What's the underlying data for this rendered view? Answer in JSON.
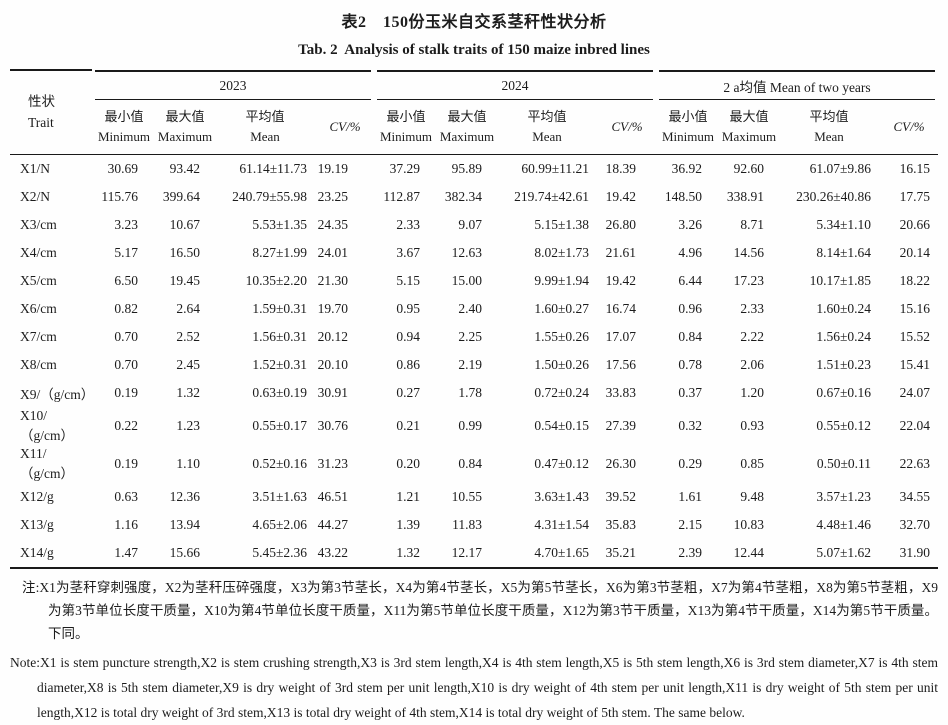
{
  "title": {
    "zh": "表2　150份玉米自交系茎秆性状分析",
    "en": "Tab. 2  Analysis of stalk traits of 150 maize inbred lines"
  },
  "table": {
    "trait_header": {
      "zh": "性状",
      "en": "Trait"
    },
    "year_groups": [
      "2023",
      "2024",
      "2 a均值 Mean of two years"
    ],
    "columns": [
      {
        "key": "min",
        "zh": "最小值",
        "en": "Minimum"
      },
      {
        "key": "max",
        "zh": "最大值",
        "en": "Maximum"
      },
      {
        "key": "mean",
        "zh": "平均值",
        "en": "Mean"
      },
      {
        "key": "cv",
        "zh": "CV/%",
        "en": ""
      }
    ],
    "rows": [
      {
        "trait": "X1/N",
        "y2023": [
          "30.69",
          "93.42",
          "61.14±11.73",
          "19.19"
        ],
        "y2024": [
          "37.29",
          "95.89",
          "60.99±11.21",
          "18.39"
        ],
        "two_year": [
          "36.92",
          "92.60",
          "61.07±9.86",
          "16.15"
        ]
      },
      {
        "trait": "X2/N",
        "y2023": [
          "115.76",
          "399.64",
          "240.79±55.98",
          "23.25"
        ],
        "y2024": [
          "112.87",
          "382.34",
          "219.74±42.61",
          "19.42"
        ],
        "two_year": [
          "148.50",
          "338.91",
          "230.26±40.86",
          "17.75"
        ]
      },
      {
        "trait": "X3/cm",
        "y2023": [
          "3.23",
          "10.67",
          "5.53±1.35",
          "24.35"
        ],
        "y2024": [
          "2.33",
          "9.07",
          "5.15±1.38",
          "26.80"
        ],
        "two_year": [
          "3.26",
          "8.71",
          "5.34±1.10",
          "20.66"
        ]
      },
      {
        "trait": "X4/cm",
        "y2023": [
          "5.17",
          "16.50",
          "8.27±1.99",
          "24.01"
        ],
        "y2024": [
          "3.67",
          "12.63",
          "8.02±1.73",
          "21.61"
        ],
        "two_year": [
          "4.96",
          "14.56",
          "8.14±1.64",
          "20.14"
        ]
      },
      {
        "trait": "X5/cm",
        "y2023": [
          "6.50",
          "19.45",
          "10.35±2.20",
          "21.30"
        ],
        "y2024": [
          "5.15",
          "15.00",
          "9.99±1.94",
          "19.42"
        ],
        "two_year": [
          "6.44",
          "17.23",
          "10.17±1.85",
          "18.22"
        ]
      },
      {
        "trait": "X6/cm",
        "y2023": [
          "0.82",
          "2.64",
          "1.59±0.31",
          "19.70"
        ],
        "y2024": [
          "0.95",
          "2.40",
          "1.60±0.27",
          "16.74"
        ],
        "two_year": [
          "0.96",
          "2.33",
          "1.60±0.24",
          "15.16"
        ]
      },
      {
        "trait": "X7/cm",
        "y2023": [
          "0.70",
          "2.52",
          "1.56±0.31",
          "20.12"
        ],
        "y2024": [
          "0.94",
          "2.25",
          "1.55±0.26",
          "17.07"
        ],
        "two_year": [
          "0.84",
          "2.22",
          "1.56±0.24",
          "15.52"
        ]
      },
      {
        "trait": "X8/cm",
        "y2023": [
          "0.70",
          "2.45",
          "1.52±0.31",
          "20.10"
        ],
        "y2024": [
          "0.86",
          "2.19",
          "1.50±0.26",
          "17.56"
        ],
        "two_year": [
          "0.78",
          "2.06",
          "1.51±0.23",
          "15.41"
        ]
      },
      {
        "trait": "X9/（g/cm）",
        "y2023": [
          "0.19",
          "1.32",
          "0.63±0.19",
          "30.91"
        ],
        "y2024": [
          "0.27",
          "1.78",
          "0.72±0.24",
          "33.83"
        ],
        "two_year": [
          "0.37",
          "1.20",
          "0.67±0.16",
          "24.07"
        ]
      },
      {
        "trait": "X10/（g/cm）",
        "y2023": [
          "0.22",
          "1.23",
          "0.55±0.17",
          "30.76"
        ],
        "y2024": [
          "0.21",
          "0.99",
          "0.54±0.15",
          "27.39"
        ],
        "two_year": [
          "0.32",
          "0.93",
          "0.55±0.12",
          "22.04"
        ]
      },
      {
        "trait": "X11/（g/cm）",
        "y2023": [
          "0.19",
          "1.10",
          "0.52±0.16",
          "31.23"
        ],
        "y2024": [
          "0.20",
          "0.84",
          "0.47±0.12",
          "26.30"
        ],
        "two_year": [
          "0.29",
          "0.85",
          "0.50±0.11",
          "22.63"
        ]
      },
      {
        "trait": "X12/g",
        "y2023": [
          "0.63",
          "12.36",
          "3.51±1.63",
          "46.51"
        ],
        "y2024": [
          "1.21",
          "10.55",
          "3.63±1.43",
          "39.52"
        ],
        "two_year": [
          "1.61",
          "9.48",
          "3.57±1.23",
          "34.55"
        ]
      },
      {
        "trait": "X13/g",
        "y2023": [
          "1.16",
          "13.94",
          "4.65±2.06",
          "44.27"
        ],
        "y2024": [
          "1.39",
          "11.83",
          "4.31±1.54",
          "35.83"
        ],
        "two_year": [
          "2.15",
          "10.83",
          "4.48±1.46",
          "32.70"
        ]
      },
      {
        "trait": "X14/g",
        "y2023": [
          "1.47",
          "15.66",
          "5.45±2.36",
          "43.22"
        ],
        "y2024": [
          "1.32",
          "12.17",
          "4.70±1.65",
          "35.21"
        ],
        "two_year": [
          "2.39",
          "12.44",
          "5.07±1.62",
          "31.90"
        ]
      }
    ]
  },
  "notes": {
    "zh": "注:X1为茎秆穿刺强度，X2为茎秆压碎强度，X3为第3节茎长，X4为第4节茎长，X5为第5节茎长，X6为第3节茎粗，X7为第4节茎粗，X8为第5节茎粗，X9为第3节单位长度干质量，X10为第4节单位长度干质量，X11为第5节单位长度干质量，X12为第3节干质量，X13为第4节干质量，X14为第5节干质量。下同。",
    "en": "Note:X1 is stem puncture strength,X2 is stem crushing strength,X3 is 3rd stem length,X4 is 4th stem length,X5 is 5th stem length,X6 is 3rd stem diameter,X7 is 4th stem diameter,X8 is 5th stem diameter,X9 is dry weight of 3rd stem per unit length,X10 is dry weight of 4th stem per unit length,X11 is dry weight of 5th stem per unit length,X12 is total dry weight of 3rd stem,X13 is total dry weight of 4th stem,X14 is total dry weight of 5th stem. The same below."
  }
}
